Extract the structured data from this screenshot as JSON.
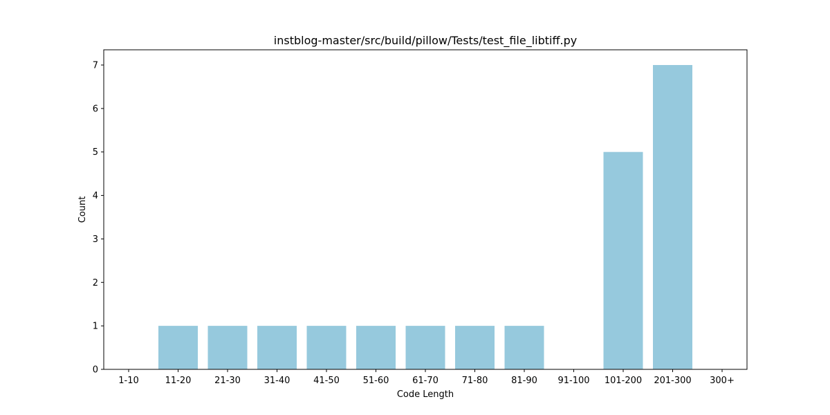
{
  "chart_data": {
    "type": "bar",
    "title": "instblog-master/src/build/pillow/Tests/test_file_libtiff.py",
    "xlabel": "Code Length",
    "ylabel": "Count",
    "categories": [
      "1-10",
      "11-20",
      "21-30",
      "31-40",
      "41-50",
      "51-60",
      "61-70",
      "71-80",
      "81-90",
      "91-100",
      "101-200",
      "201-300",
      "300+"
    ],
    "values": [
      0,
      1,
      1,
      1,
      1,
      1,
      1,
      1,
      1,
      0,
      5,
      7,
      0
    ],
    "ylim": [
      0,
      7.35
    ],
    "yticks": [
      0,
      1,
      2,
      3,
      4,
      5,
      6,
      7
    ],
    "bar_color": "#96c9dd",
    "grid": false
  }
}
